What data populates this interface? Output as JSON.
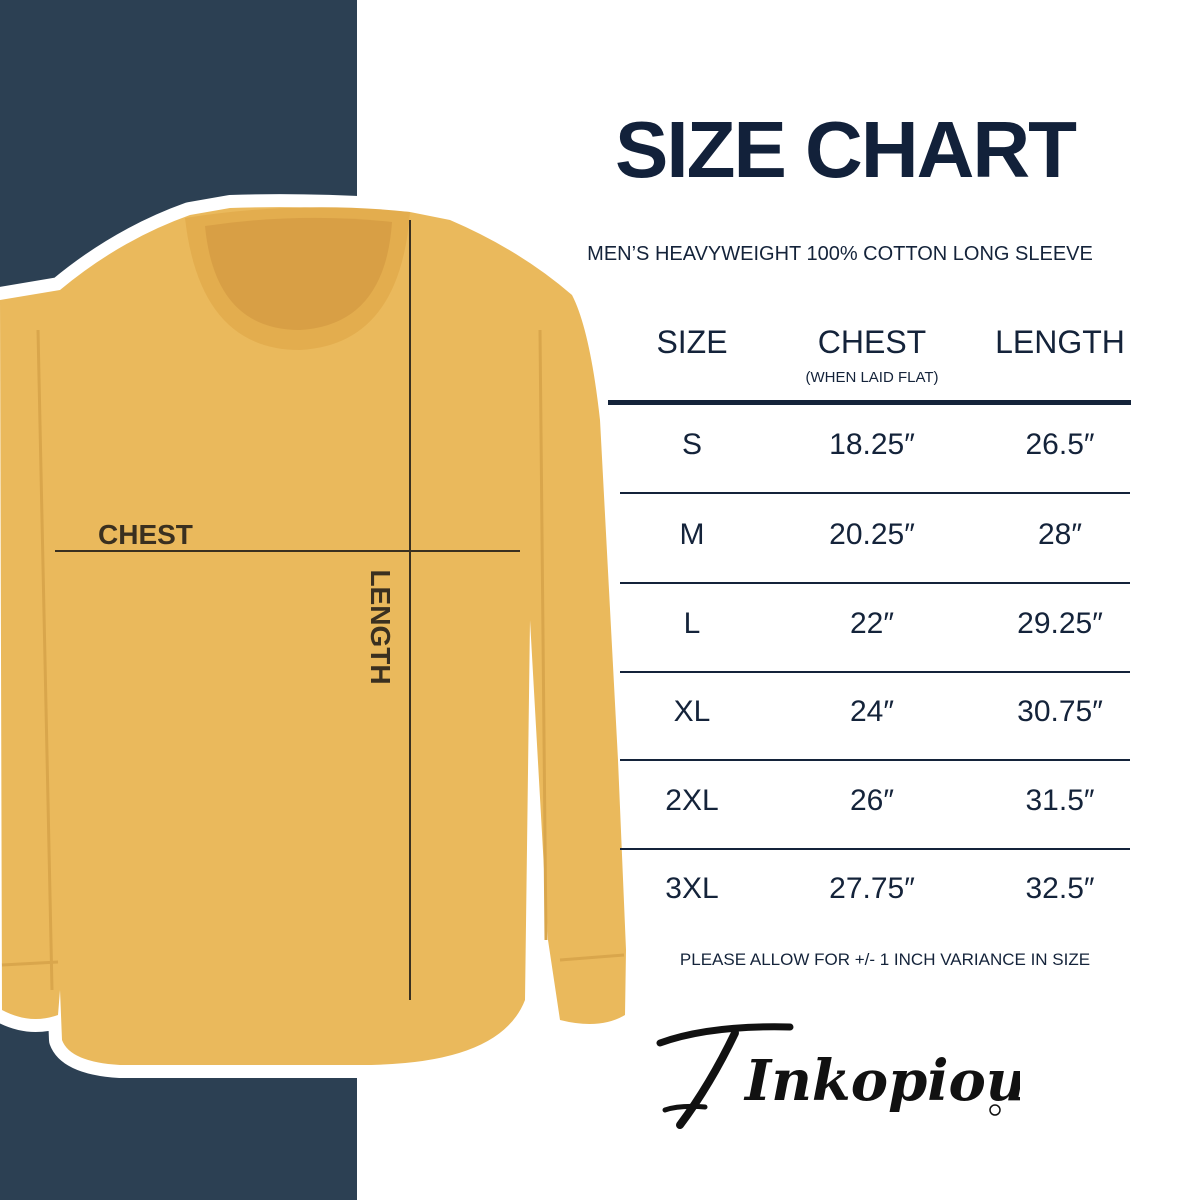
{
  "title": "SIZE CHART",
  "subtitle": "MEN’S HEAVYWEIGHT 100% COTTON LONG SLEEVE",
  "table": {
    "headers": [
      "SIZE",
      "CHEST",
      "LENGTH"
    ],
    "chest_note": "(WHEN LAID FLAT)",
    "rows": [
      [
        "S",
        "18.25″",
        "26.5″"
      ],
      [
        "M",
        "20.25″",
        "28″"
      ],
      [
        "L",
        "22″",
        "29.25″"
      ],
      [
        "XL",
        "24″",
        "30.75″"
      ],
      [
        "2XL",
        "26″",
        "31.5″"
      ],
      [
        "3XL",
        "27.75″",
        "32.5″"
      ]
    ]
  },
  "note": "PLEASE ALLOW FOR +/- 1 INCH VARIANCE IN SIZE",
  "shirt_labels": {
    "chest": "CHEST",
    "length": "LENGTH"
  },
  "logo": "Inkopious",
  "colors": {
    "navy": "#2c4053",
    "shirt": "#eab95c",
    "text": "#14233a"
  }
}
